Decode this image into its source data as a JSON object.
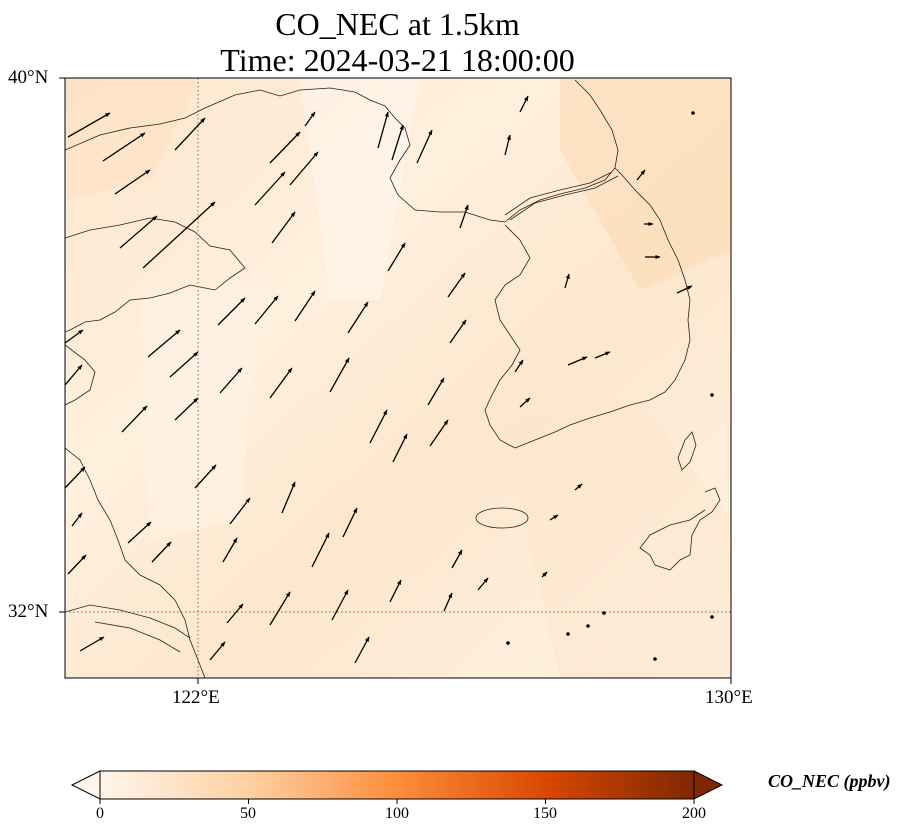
{
  "title": {
    "line1": "CO_NEC at 1.5km",
    "line2": "Time: 2024-03-21 18:00:00"
  },
  "map": {
    "region": "Yellow Sea / Korean Peninsula",
    "lon_range": [
      120,
      130
    ],
    "lat_range": [
      31,
      40
    ],
    "lat_ticks": [
      {
        "label": "40°N",
        "value": 40
      },
      {
        "label": "32°N",
        "value": 32
      }
    ],
    "lon_ticks": [
      {
        "label": "122°E",
        "value": 122
      },
      {
        "label": "130°E",
        "value": 130
      }
    ],
    "gridlines": {
      "lon": [
        122
      ],
      "lat": [
        32
      ],
      "style": "dotted"
    },
    "field": "CO_NEC",
    "field_level": "1.5km",
    "field_range_shown_ppbv": [
      0,
      40
    ],
    "wind_vectors": "shown"
  },
  "colorbar": {
    "label": "CO_NEC (ppbv)",
    "min": 0,
    "max": 200,
    "ticks": [
      "0",
      "50",
      "100",
      "150",
      "200"
    ],
    "colors": [
      "#fff5eb",
      "#fdd0a2",
      "#fd8d3c",
      "#d94801",
      "#7f2704"
    ],
    "extend": "both"
  }
}
